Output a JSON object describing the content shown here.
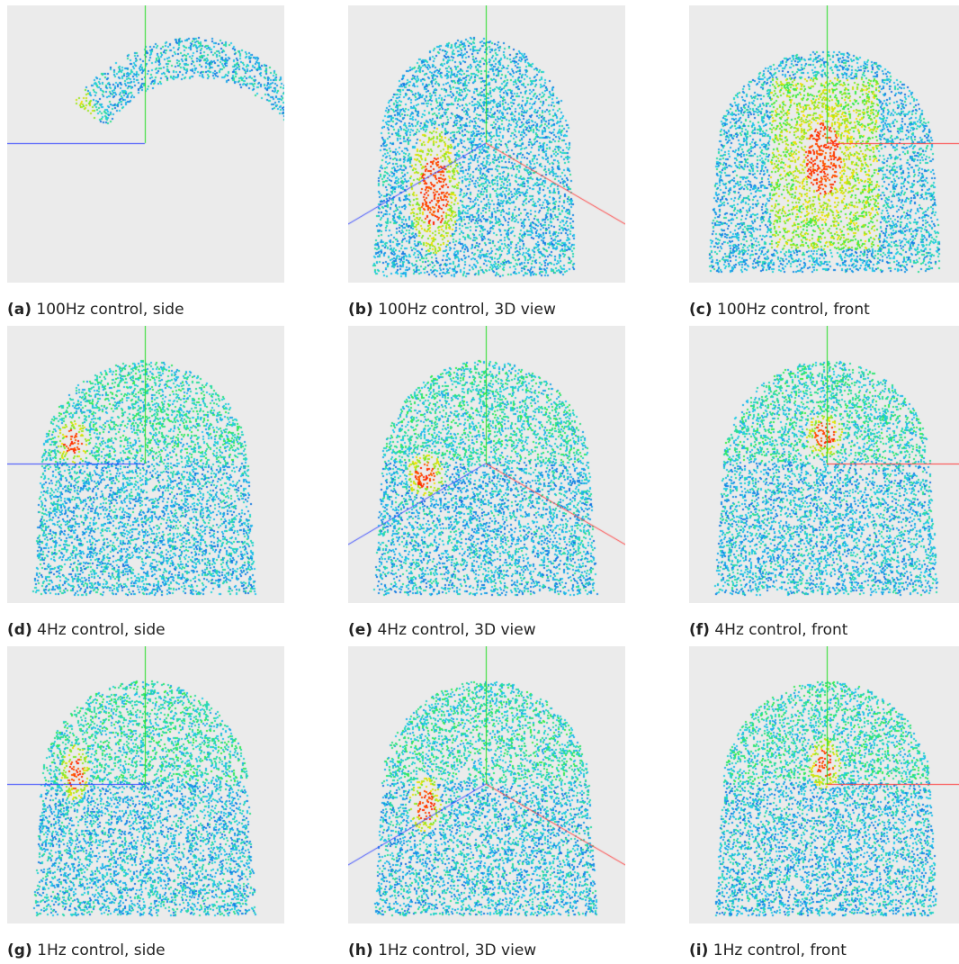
{
  "figure": {
    "panels": [
      {
        "id": "a",
        "label": "(a)",
        "caption": "100Hz control, side",
        "view": "side",
        "frequency": "100Hz",
        "shape": "crescent"
      },
      {
        "id": "b",
        "label": "(b)",
        "caption": "100Hz control, 3D view",
        "view": "3d",
        "frequency": "100Hz",
        "shape": "dome-offset"
      },
      {
        "id": "c",
        "label": "(c)",
        "caption": "100Hz control, front",
        "view": "front",
        "frequency": "100Hz",
        "shape": "blocky-dome"
      },
      {
        "id": "d",
        "label": "(d)",
        "caption": "4Hz control, side",
        "view": "side",
        "frequency": "4Hz",
        "shape": "dome"
      },
      {
        "id": "e",
        "label": "(e)",
        "caption": "4Hz control, 3D view",
        "view": "3d",
        "frequency": "4Hz",
        "shape": "dome"
      },
      {
        "id": "f",
        "label": "(f)",
        "caption": "4Hz control, front",
        "view": "front",
        "frequency": "4Hz",
        "shape": "dome"
      },
      {
        "id": "g",
        "label": "(g)",
        "caption": "1Hz control, side",
        "view": "side",
        "frequency": "1Hz",
        "shape": "dome"
      },
      {
        "id": "h",
        "label": "(h)",
        "caption": "1Hz control, 3D view",
        "view": "3d",
        "frequency": "1Hz",
        "shape": "dome"
      },
      {
        "id": "i",
        "label": "(i)",
        "caption": "1Hz control, front",
        "view": "front",
        "frequency": "1Hz",
        "shape": "dome"
      }
    ],
    "colors": {
      "panel_background": "#ebebeb",
      "axis_x": "#ff3b3b",
      "axis_y": "#22dd22",
      "axis_z": "#3344ff",
      "hot": "#ff1a00",
      "warm": "#ffe000",
      "mid": "#33ee44",
      "cool": "#22ccee",
      "cold": "#0b2bd6"
    }
  }
}
